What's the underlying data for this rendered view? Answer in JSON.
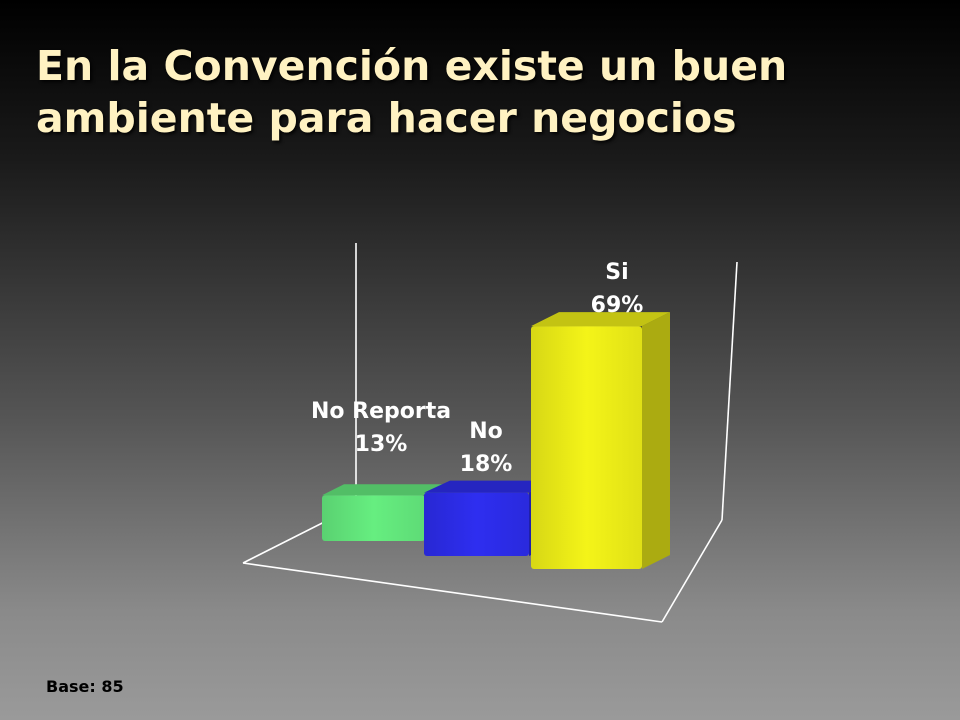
{
  "title": {
    "line1": "En la Convención existe un buen",
    "line2": "ambiente para hacer negocios"
  },
  "base_note": "Base: 85",
  "chart_data": {
    "type": "bar",
    "style": "3d-column",
    "grid": false,
    "categories": [
      "No Reporta",
      "No",
      "Si"
    ],
    "values": [
      13,
      18,
      69
    ],
    "value_labels": [
      "13%",
      "18%",
      "69%"
    ],
    "colors": [
      "#66ee80",
      "#2e2ef0",
      "#f4f418"
    ],
    "ylim": [
      0,
      70
    ]
  }
}
